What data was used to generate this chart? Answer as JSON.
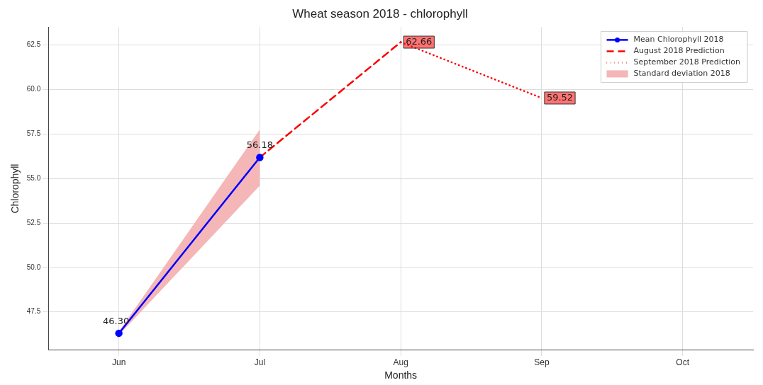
{
  "chart_data": {
    "type": "line",
    "title": "Wheat season 2018 - chlorophyll",
    "xlabel": "Months",
    "ylabel": "Chlorophyll",
    "categories": [
      "Jun",
      "Jul",
      "Aug",
      "Sep",
      "Oct"
    ],
    "series": [
      {
        "name": "Mean Chlorophyll 2018",
        "color": "#0000ff",
        "values": [
          46.3,
          56.18,
          null,
          null,
          null
        ],
        "marker": "circle",
        "line_style": "solid",
        "value_labels": [
          "46.30",
          "56.18",
          null,
          null,
          null
        ]
      },
      {
        "name": "August 2018 Prediction",
        "color": "#ff0000",
        "values": [
          null,
          56.18,
          62.66,
          null,
          null
        ],
        "marker": "none",
        "line_style": "dashed",
        "value_labels": [
          null,
          null,
          "62.66",
          null,
          null
        ]
      },
      {
        "name": "September 2018 Prediction",
        "color": "#ff0000",
        "values": [
          null,
          null,
          62.66,
          59.52,
          null
        ],
        "marker": "none",
        "line_style": "dotted",
        "value_labels": [
          null,
          null,
          null,
          "59.52",
          null
        ]
      },
      {
        "name": "Standard deviation 2018",
        "type": "line",
        "color": "#f4b6b6",
        "values": [
          null,
          null,
          null,
          null,
          null
        ],
        "lower": [
          46.2,
          54.6,
          null,
          null,
          null
        ],
        "upper": [
          46.4,
          57.75,
          null,
          null,
          null
        ]
      }
    ],
    "ylim": [
      45.35,
      63.5
    ],
    "yticks": [
      {
        "value": 47.5,
        "label": "47.5"
      },
      {
        "value": 50,
        "label": "50.0"
      },
      {
        "value": 52.5,
        "label": "52.5"
      },
      {
        "value": 55,
        "label": "55.0"
      },
      {
        "value": 57.5,
        "label": "57.5"
      },
      {
        "value": 60,
        "label": "60.0"
      },
      {
        "value": 62.5,
        "label": "62.5"
      }
    ],
    "grid": true,
    "legend": "top right"
  }
}
